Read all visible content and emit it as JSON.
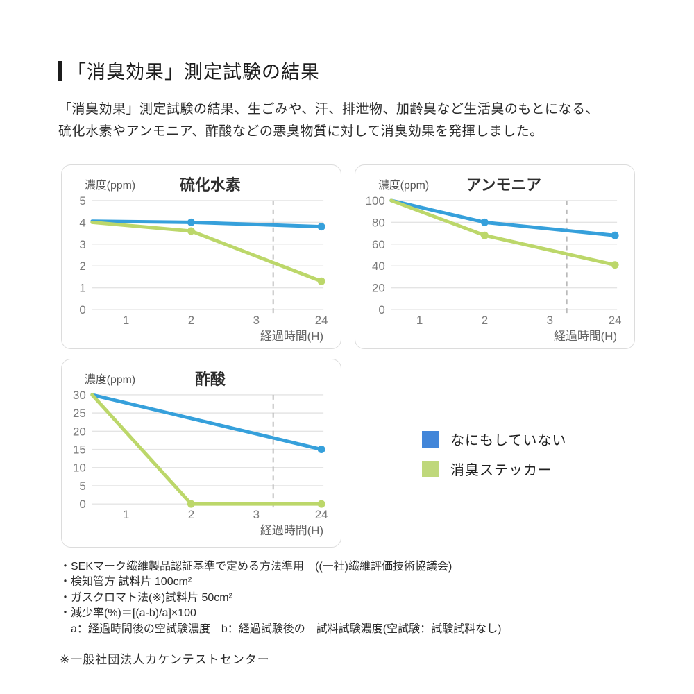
{
  "header": {
    "title": "「消臭効果」測定試験の結果"
  },
  "intro": {
    "line1": "「消臭効果」測定試験の結果、生ごみや、汗、排泄物、加齢臭など生活臭のもとになる、",
    "line2": "硫化水素やアンモニア、酢酸などの悪臭物質に対して消臭効果を発揮しました。"
  },
  "colors": {
    "line_blue": "#36a0db",
    "line_green": "#bcd76a",
    "legend_blue": "#4286d9",
    "legend_green": "#bfd87b",
    "grid": "#e4e4e4",
    "dashed": "#bababa",
    "tick_text": "#7a7a7a",
    "axis_label_text": "#666666",
    "chart_title_text": "#2e2e2e"
  },
  "legend": {
    "items": [
      {
        "label": "なにもしていない",
        "color": "#4286d9"
      },
      {
        "label": "消臭ステッカー",
        "color": "#bfd87b"
      }
    ]
  },
  "chart_data": [
    {
      "id": "hydrogen-sulfide",
      "type": "line",
      "title": "硫化水素",
      "y_unit_label": "濃度(ppm)",
      "x_axis_label": "経過時間(H)",
      "x_ticks": [
        "1",
        "2",
        "3",
        "24"
      ],
      "y_ticks": [
        5,
        4,
        3,
        2,
        1,
        0
      ],
      "ylim": [
        0,
        5
      ],
      "grid": true,
      "time_break_between": [
        "3",
        "24"
      ],
      "series": [
        {
          "name": "なにもしていない",
          "color": "#36a0db",
          "x": [
            0,
            2,
            24
          ],
          "y": [
            4.05,
            4.0,
            3.8
          ]
        },
        {
          "name": "消臭ステッカー",
          "color": "#bcd76a",
          "x": [
            0,
            2,
            24
          ],
          "y": [
            4.0,
            3.6,
            1.3
          ]
        }
      ]
    },
    {
      "id": "ammonia",
      "type": "line",
      "title": "アンモニア",
      "y_unit_label": "濃度(ppm)",
      "x_axis_label": "経過時間(H)",
      "x_ticks": [
        "1",
        "2",
        "3",
        "24"
      ],
      "y_ticks": [
        100,
        80,
        60,
        40,
        20,
        0
      ],
      "ylim": [
        0,
        100
      ],
      "grid": true,
      "time_break_between": [
        "3",
        "24"
      ],
      "series": [
        {
          "name": "なにもしていない",
          "color": "#36a0db",
          "x": [
            0,
            2,
            24
          ],
          "y": [
            100,
            80,
            68
          ]
        },
        {
          "name": "消臭ステッカー",
          "color": "#bcd76a",
          "x": [
            0,
            2,
            24
          ],
          "y": [
            100,
            68,
            41
          ]
        }
      ]
    },
    {
      "id": "acetic-acid",
      "type": "line",
      "title": "酢酸",
      "y_unit_label": "濃度(ppm)",
      "x_axis_label": "経過時間(H)",
      "x_ticks": [
        "1",
        "2",
        "3",
        "24"
      ],
      "y_ticks": [
        30,
        25,
        20,
        15,
        10,
        5,
        0
      ],
      "ylim": [
        0,
        30
      ],
      "grid": true,
      "time_break_between": [
        "3",
        "24"
      ],
      "series": [
        {
          "name": "なにもしていない",
          "color": "#36a0db",
          "x": [
            0,
            24
          ],
          "y": [
            30,
            15
          ]
        },
        {
          "name": "消臭ステッカー",
          "color": "#bcd76a",
          "x": [
            0,
            2,
            24
          ],
          "y": [
            30,
            0,
            0
          ]
        }
      ]
    }
  ],
  "footnotes": [
    "・SEKマーク繊維製品認証基準で定める方法準用　((一社)繊維評価技術協議会)",
    "・検知管方 試料片 100cm²",
    "・ガスクロマト法(※)試料片 50cm²",
    "・減少率(%)＝[(a-b)/a]×100",
    "　a：経過時間後の空試験濃度　b：経過試験後の　試料試験濃度(空試験：試験試料なし)"
  ],
  "bottom_note": "※一般社団法人カケンテストセンター"
}
